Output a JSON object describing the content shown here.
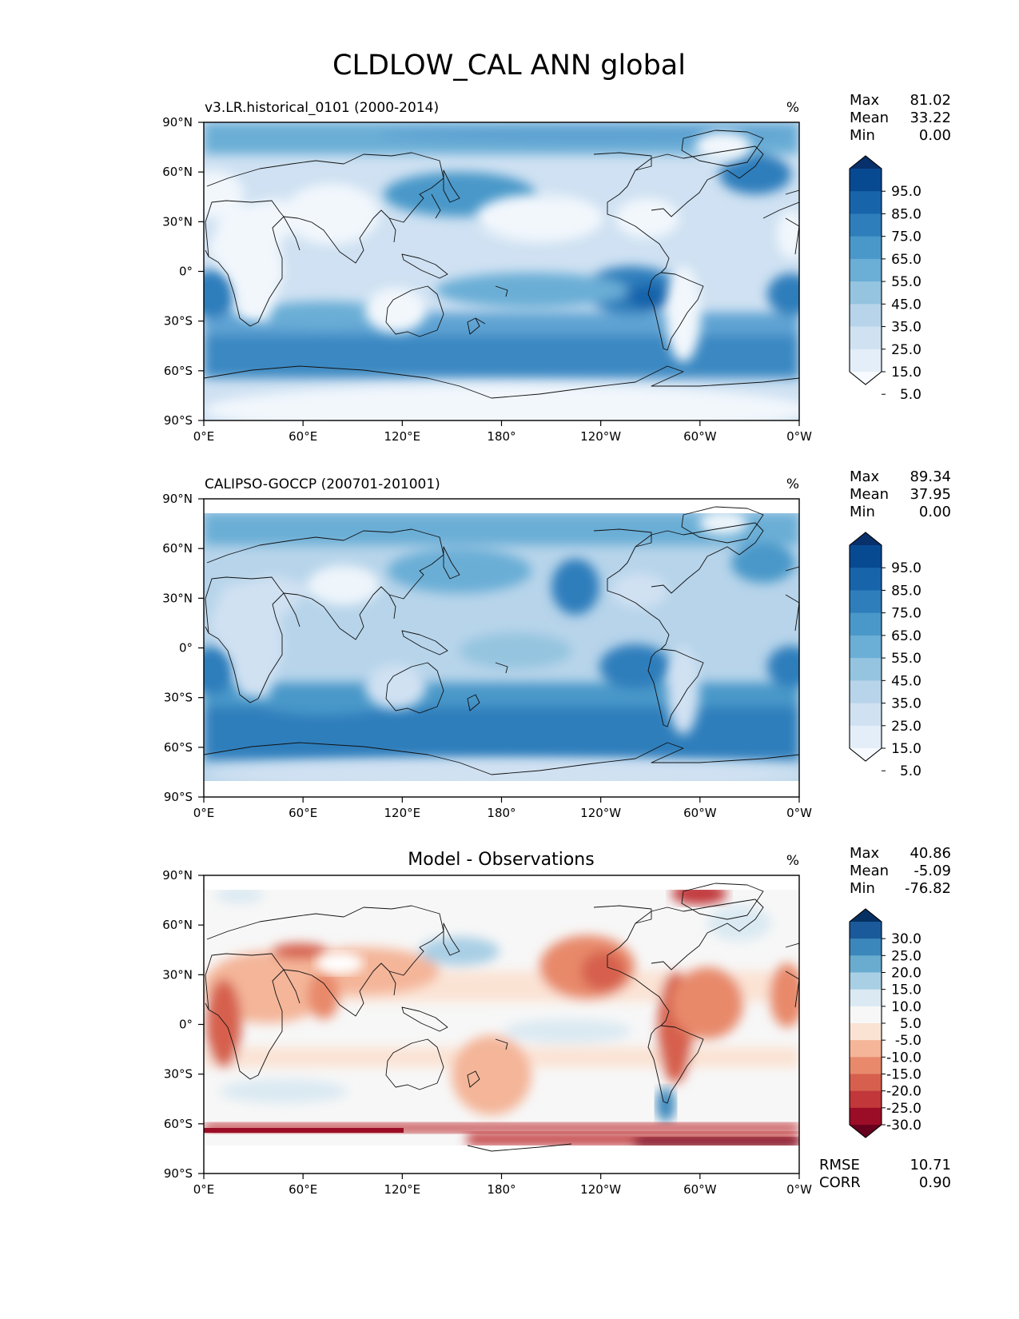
{
  "figure": {
    "title": "CLDLOW_CAL ANN global",
    "lat_ticks": [
      "90°N",
      "60°N",
      "30°N",
      "0°",
      "30°S",
      "60°S",
      "90°S"
    ],
    "lon_ticks": [
      "0°E",
      "60°E",
      "120°E",
      "180°",
      "120°W",
      "60°W",
      "0°W"
    ],
    "stat_labels": {
      "max": "Max",
      "mean": "Mean",
      "min": "Min",
      "rmse": "RMSE",
      "corr": "CORR"
    }
  },
  "panels": [
    {
      "id": "model",
      "left_title": "v3.LR.historical_0101 (2000-2014)",
      "center_title": "",
      "units": "%",
      "stats": {
        "max": "81.02",
        "mean": "33.22",
        "min": "0.00"
      },
      "colorbar": {
        "ticks": [
          "95.0",
          "85.0",
          "75.0",
          "65.0",
          "55.0",
          "45.0",
          "35.0",
          "25.0",
          "15.0",
          "5.0"
        ],
        "colors": [
          "#f7fbff",
          "#e3eef8",
          "#d0e1f2",
          "#b7d4ea",
          "#94c4df",
          "#6baed6",
          "#4a98c9",
          "#2e7ebc",
          "#1764ab",
          "#084a91",
          "#08306b"
        ]
      }
    },
    {
      "id": "observations",
      "left_title": "CALIPSO-GOCCP (200701-201001)",
      "center_title": "",
      "units": "%",
      "stats": {
        "max": "89.34",
        "mean": "37.95",
        "min": "0.00"
      },
      "colorbar": {
        "ticks": [
          "95.0",
          "85.0",
          "75.0",
          "65.0",
          "55.0",
          "45.0",
          "35.0",
          "25.0",
          "15.0",
          "5.0"
        ],
        "colors": [
          "#f7fbff",
          "#e3eef8",
          "#d0e1f2",
          "#b7d4ea",
          "#94c4df",
          "#6baed6",
          "#4a98c9",
          "#2e7ebc",
          "#1764ab",
          "#084a91",
          "#08306b"
        ]
      }
    },
    {
      "id": "difference",
      "left_title": "",
      "center_title": "Model - Observations",
      "units": "%",
      "stats": {
        "max": "40.86",
        "mean": "-5.09",
        "min": "-76.82"
      },
      "metrics": {
        "rmse": "10.71",
        "corr": "0.90"
      },
      "colorbar": {
        "ticks": [
          "30.0",
          "25.0",
          "20.0",
          "15.0",
          "10.0",
          "5.0",
          "-5.0",
          "-10.0",
          "-15.0",
          "-20.0",
          "-25.0",
          "-30.0"
        ],
        "colors": [
          "#67001f",
          "#9b0d27",
          "#c1373a",
          "#d6604d",
          "#e8896b",
          "#f4b599",
          "#fbe3d4",
          "#f7f7f7",
          "#dae9f2",
          "#a9cfe5",
          "#6aacd0",
          "#3b87bc",
          "#1b5a9a",
          "#053061"
        ]
      }
    }
  ]
}
